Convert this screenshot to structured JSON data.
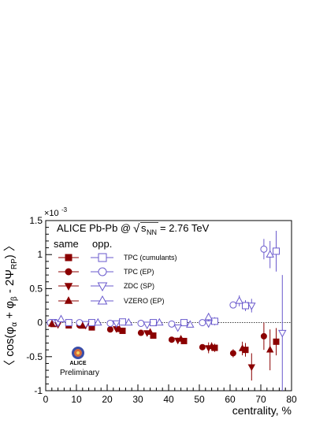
{
  "chart_data": {
    "type": "scatter",
    "title": "ALICE Pb-Pb @",
    "energy_label": "= 2.76 TeV",
    "sqrt_symbol": "√",
    "sqrt_s": "s",
    "sqrt_sub": "NN",
    "xlabel": "centrality, %",
    "ylabel_parts": [
      "〈 cos(φ",
      "α",
      " + φ",
      "β",
      " - 2Ψ",
      "RP",
      ") 〉"
    ],
    "y_exponent_base": "×10",
    "y_exponent": "-3",
    "xlim": [
      0,
      80
    ],
    "ylim": [
      -1.0,
      1.5
    ],
    "x_ticks": [
      0,
      10,
      20,
      30,
      40,
      50,
      60,
      70,
      80
    ],
    "y_ticks": [
      -1,
      -0.5,
      0,
      0.5,
      1,
      1.5
    ],
    "y_tick_labels": [
      "-1",
      "-0.5",
      "0",
      "0.5",
      "1",
      "1.5"
    ],
    "zero_line": true,
    "legend_headers": {
      "same": "same",
      "opp": "opp."
    },
    "colors": {
      "same": "#8b0000",
      "opp": "#6a5acd",
      "logo_text": "#f0a040"
    },
    "logo_label": "ALICE",
    "logo_sublabel": "Preliminary",
    "series": [
      {
        "name": "TPC (cumulants)",
        "charge": "same",
        "marker": "square-filled",
        "x": [
          2.5,
          7.5,
          15,
          25,
          35,
          45,
          55,
          65,
          75
        ],
        "y": [
          -0.02,
          -0.04,
          -0.07,
          -0.12,
          -0.19,
          -0.27,
          -0.37,
          -0.4,
          -0.28
        ],
        "err": [
          0.01,
          0.01,
          0.02,
          0.02,
          0.03,
          0.04,
          0.06,
          0.1,
          0.2
        ]
      },
      {
        "name": "TPC (cumulants)",
        "charge": "opp",
        "marker": "square-open",
        "x": [
          2.5,
          7.5,
          15,
          25,
          35,
          45,
          55,
          65,
          75
        ],
        "y": [
          0.0,
          0.0,
          0.0,
          0.01,
          0.0,
          0.0,
          0.02,
          0.25,
          1.05
        ],
        "err": [
          0.01,
          0.01,
          0.02,
          0.02,
          0.03,
          0.04,
          0.06,
          0.08,
          0.3
        ]
      },
      {
        "name": "TPC (EP)",
        "charge": "same",
        "marker": "circle-filled",
        "x": [
          1.5,
          11,
          21,
          31,
          41,
          51,
          61,
          71
        ],
        "y": [
          -0.01,
          -0.04,
          -0.1,
          -0.15,
          -0.25,
          -0.36,
          -0.45,
          -0.2
        ],
        "err": [
          0.01,
          0.02,
          0.02,
          0.03,
          0.03,
          0.04,
          0.06,
          0.2
        ]
      },
      {
        "name": "TPC (EP)",
        "charge": "opp",
        "marker": "circle-open",
        "x": [
          1.5,
          11,
          21,
          31,
          41,
          51,
          61,
          71
        ],
        "y": [
          0.0,
          0.0,
          -0.01,
          -0.01,
          -0.02,
          0.0,
          0.26,
          1.08
        ],
        "err": [
          0.01,
          0.02,
          0.02,
          0.03,
          0.03,
          0.04,
          0.05,
          0.15
        ]
      },
      {
        "name": "ZDC (SP)",
        "charge": "same",
        "marker": "tridown-filled",
        "x": [
          4,
          13,
          23,
          33,
          43,
          53,
          67
        ],
        "y": [
          -0.03,
          -0.04,
          -0.09,
          -0.15,
          -0.26,
          -0.37,
          -0.65
        ],
        "err": [
          0.02,
          0.02,
          0.03,
          0.03,
          0.04,
          0.08,
          0.2
        ]
      },
      {
        "name": "ZDC (SP)",
        "charge": "opp",
        "marker": "tridown-open",
        "x": [
          4,
          13,
          23,
          33,
          43,
          53,
          67,
          77
        ],
        "y": [
          0.0,
          -0.02,
          -0.01,
          -0.03,
          -0.07,
          -0.01,
          0.25,
          -0.15
        ],
        "err": [
          0.02,
          0.02,
          0.03,
          0.03,
          0.04,
          0.06,
          0.1,
          0.85
        ]
      },
      {
        "name": "VZERO (EP)",
        "charge": "same",
        "marker": "triup-filled",
        "x": [
          2,
          12,
          24,
          34,
          44,
          54,
          64,
          73
        ],
        "y": [
          -0.02,
          -0.05,
          -0.1,
          -0.14,
          -0.24,
          -0.35,
          -0.38,
          -0.4
        ],
        "err": [
          0.02,
          0.02,
          0.03,
          0.03,
          0.04,
          0.06,
          0.1,
          0.3
        ]
      },
      {
        "name": "VZERO (EP)",
        "charge": "opp",
        "marker": "triup-open",
        "x": [
          5,
          17,
          27,
          37,
          47,
          53,
          63,
          73
        ],
        "y": [
          0.05,
          0.0,
          0.0,
          0.0,
          -0.03,
          0.08,
          0.32,
          1.0
        ],
        "err": [
          0.02,
          0.02,
          0.03,
          0.03,
          0.04,
          0.06,
          0.08,
          0.2
        ]
      }
    ],
    "legend_entries": [
      {
        "label": "TPC (cumulants)",
        "same_marker": "square-filled",
        "opp_marker": "square-open"
      },
      {
        "label": "TPC (EP)",
        "same_marker": "circle-filled",
        "opp_marker": "circle-open"
      },
      {
        "label": "ZDC (SP)",
        "same_marker": "tridown-filled",
        "opp_marker": "tridown-open"
      },
      {
        "label": "VZERO (EP)",
        "same_marker": "triup-filled",
        "opp_marker": "triup-open"
      }
    ]
  }
}
